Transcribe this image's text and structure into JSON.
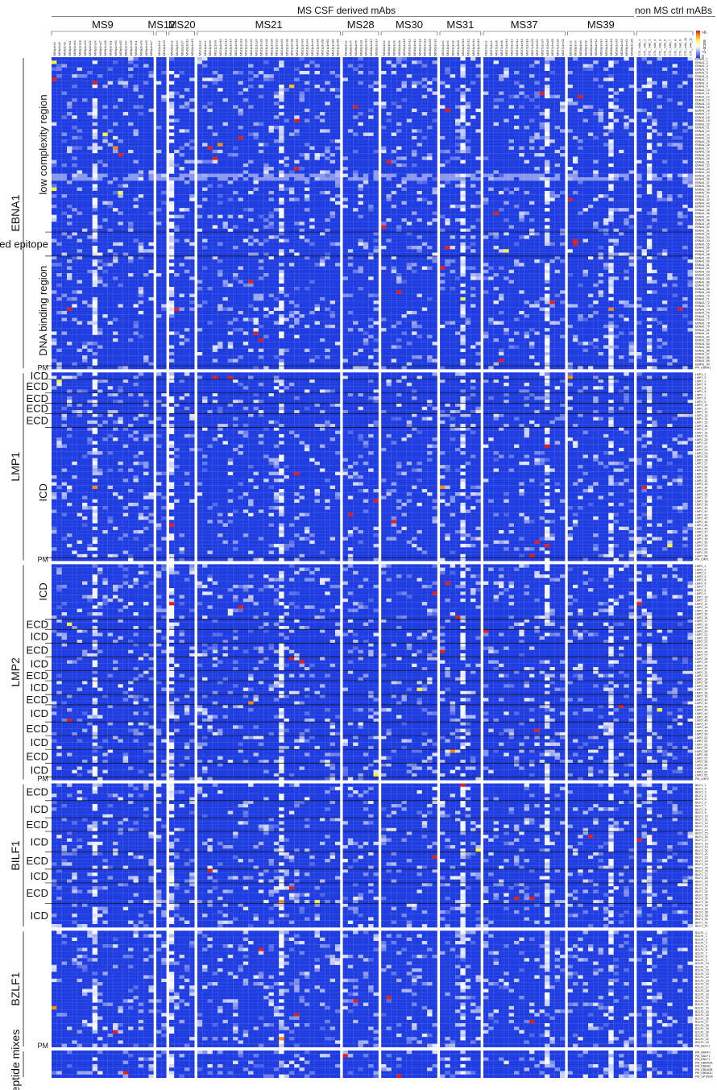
{
  "chart_data": {
    "type": "heatmap",
    "title": "MS CSF derived mAbs",
    "title_right": "non MS ctrl mABs",
    "colorbar": {
      "label": "Z-score",
      "max_label": ">6",
      "min_label": "0",
      "colors": [
        "#1f3de0",
        "#ffffff",
        "#fff23a",
        "#ff8a00",
        "#e0211a"
      ]
    },
    "column_groups": [
      {
        "name": "MS9",
        "columns": [
          "MS9p1re3",
          "MS9p1re5",
          "MS9p1re8",
          "MS9p1re11",
          "MS9p1re16",
          "MS9p1re18",
          "MS9p1re20",
          "MS9p1re22",
          "MS9p1re24",
          "MS9p1re27",
          "MS9p1re29",
          "MS9p1re31",
          "MS9p1re33",
          "MS9p1re35",
          "MS9p1re37",
          "MS9p1re39",
          "MS9p1re41",
          "MS9p1re43",
          "MS9p1re45",
          "MS9p1re47"
        ]
      },
      {
        "name": "MS12",
        "columns": [
          "MS12p1re2",
          "MS12p1re5"
        ]
      },
      {
        "name": "MS20",
        "columns": [
          "MS20p1re2",
          "MS20p1re4",
          "MS20p1re7",
          "MS20p1re11",
          "MS20p1re15"
        ]
      },
      {
        "name": "MS21",
        "columns": [
          "MS21p1re2",
          "MS21p1re4",
          "MS21p1re6",
          "MS21p1re8",
          "MS21p1re10",
          "MS21p1re12",
          "MS21p1re14",
          "MS21p1re16",
          "MS21p1re18",
          "MS21p1re20",
          "MS21p1re22",
          "MS21p1re24",
          "MS21p1re26",
          "MS21p1re28",
          "MS21p1re30",
          "MS21p1re32",
          "MS21p1re34",
          "MS21p1re36",
          "MS21p1re38",
          "MS21p1re40",
          "MS21p1re42",
          "MS21p1re44",
          "MS21p1re46",
          "MS21p1re48",
          "MS21p1re50",
          "MS21p1re52",
          "MS21p1re54",
          "MS21p1re56"
        ]
      },
      {
        "name": "MS28",
        "columns": [
          "MS28p1re2",
          "MS28p1re4",
          "MS28p1re6",
          "MS28p1re8",
          "MS28p1re10",
          "MS28p1re12",
          "MS28p1re14"
        ]
      },
      {
        "name": "MS30",
        "columns": [
          "MS30p1re2",
          "MS30p1re4",
          "MS30p1re6",
          "MS30p1re8",
          "MS30p1re10",
          "MS30p1re12",
          "MS30p1re14",
          "MS30p1re16",
          "MS30p1re18",
          "MS30p1re20",
          "MS30p1re22"
        ]
      },
      {
        "name": "MS31",
        "columns": [
          "MS31p1re2",
          "MS31p1re4",
          "MS31p1re6",
          "MS31p1re8",
          "MS31p1re10",
          "MS31p1re12",
          "MS31p1re14",
          "MS31p1re16"
        ]
      },
      {
        "name": "MS37",
        "columns": [
          "MS37p1re2",
          "MS37p1re4",
          "MS37p1re6",
          "MS37p1re8",
          "MS37p1re10",
          "MS37p1re12",
          "MS37p1re14",
          "MS37p1re16",
          "MS37p1re18",
          "MS37p1re20",
          "MS37p1re22",
          "MS37p1re24",
          "MS37p1re26",
          "MS37p1re28",
          "MS37p1re30",
          "MS37p1re32"
        ]
      },
      {
        "name": "MS39",
        "columns": [
          "MS39p1re2",
          "MS39p1re4",
          "MS39p1re6",
          "MS39p1re8",
          "MS39p1re10",
          "MS39p1re12",
          "MS39p1re14",
          "MS39p1re16",
          "MS39p1re18",
          "MS39p1re20",
          "MS39p1re22",
          "MS39p1re24",
          "MS39p1re26"
        ]
      },
      {
        "name": "",
        "columns": [
          "CTL_mAb_1",
          "CTL_mAb_2",
          "CTL_mAb_3",
          "CTL_mAb_4",
          "CTL_mAb_5",
          "CTL_mAb_6",
          "CTL_mAb_7",
          "CTL_mAb_8",
          "CTL_mAb_9",
          "CTL_mAb_10",
          "CTL_mAb_11"
        ]
      }
    ],
    "row_blocks": [
      {
        "protein": "EBNA1",
        "prefix": "EBNA1",
        "count": 90,
        "pm": "PM_EBNA1",
        "regions": [
          {
            "label": "low complexity region",
            "start": 1,
            "end": 51
          },
          {
            "label": "MS associated epitope",
            "start": 52,
            "end": 58
          },
          {
            "label": "DNA binding region",
            "start": 59,
            "end": 90
          },
          {
            "label": "PM",
            "start": 91,
            "end": 91
          }
        ]
      },
      {
        "protein": "LMP1",
        "prefix": "LMP1",
        "count": 54,
        "pm": "PM_LMP1",
        "regions": [
          {
            "label": "ICD",
            "start": 1,
            "end": 2
          },
          {
            "label": "ECD",
            "start": 3,
            "end": 6
          },
          {
            "label": "ECD",
            "start": 7,
            "end": 9
          },
          {
            "label": "ECD",
            "start": 10,
            "end": 12
          },
          {
            "label": "ECD",
            "start": 13,
            "end": 16
          },
          {
            "label": "ICD",
            "start": 17,
            "end": 54
          },
          {
            "label": "PM",
            "start": 55,
            "end": 55
          }
        ]
      },
      {
        "protein": "LMP2",
        "prefix": "LMP2",
        "count": 62,
        "pm": "PM_LMP2",
        "regions": [
          {
            "label": "ICD",
            "start": 1,
            "end": 16
          },
          {
            "label": "ECD",
            "start": 17,
            "end": 19
          },
          {
            "label": "ICD",
            "start": 20,
            "end": 23
          },
          {
            "label": "ECD",
            "start": 24,
            "end": 27
          },
          {
            "label": "ICD",
            "start": 28,
            "end": 31
          },
          {
            "label": "ECD",
            "start": 32,
            "end": 34
          },
          {
            "label": "ICD",
            "start": 35,
            "end": 38
          },
          {
            "label": "ECD",
            "start": 39,
            "end": 41
          },
          {
            "label": "ICD",
            "start": 42,
            "end": 46
          },
          {
            "label": "ECD",
            "start": 47,
            "end": 50
          },
          {
            "label": "ICD",
            "start": 51,
            "end": 54
          },
          {
            "label": "ECD",
            "start": 55,
            "end": 58
          },
          {
            "label": "ICD",
            "start": 59,
            "end": 62
          },
          {
            "label": "PM",
            "start": 63,
            "end": 63
          }
        ]
      },
      {
        "protein": "BILF1",
        "prefix": "BILF1",
        "count": 42,
        "pm": "",
        "regions": [
          {
            "label": "ECD",
            "start": 1,
            "end": 5
          },
          {
            "label": "ICD",
            "start": 6,
            "end": 10
          },
          {
            "label": "ECD",
            "start": 11,
            "end": 14
          },
          {
            "label": "ICD",
            "start": 15,
            "end": 20
          },
          {
            "label": "ECD",
            "start": 21,
            "end": 25
          },
          {
            "label": "ICD",
            "start": 26,
            "end": 29
          },
          {
            "label": "ECD",
            "start": 30,
            "end": 35
          },
          {
            "label": "ICD",
            "start": 36,
            "end": 42
          }
        ]
      },
      {
        "protein": "BZLF1",
        "prefix": "BZLF1",
        "count": 33,
        "pm": "PM_BZLF1",
        "regions": [
          {
            "label": "PM",
            "start": 34,
            "end": 34
          }
        ]
      },
      {
        "protein": "peptide mixes",
        "prefix": "",
        "count": 0,
        "pm": "",
        "rows": [
          "PM_BARF1",
          "PM_BALF1",
          "PM_BNLF1",
          "PM_EBNA3A",
          "PM_EBNA2",
          "PM_EBNA3B",
          "PM_EBNA3C",
          "PM_GP350/8"
        ],
        "regions": []
      }
    ],
    "highlights": [
      {
        "row": "EBNA1_2",
        "col": "MS9p1re3",
        "z": 4.0
      },
      {
        "row": "EBNA1_7",
        "col": "MS9p1re3",
        "z": 6.0
      },
      {
        "row": "EBNA1_8",
        "col": "MS9p1re24",
        "z": 6.0
      },
      {
        "row": "EBNA1_9",
        "col": "MS21p1re38",
        "z": 4.5
      },
      {
        "row": "EBNA1_11",
        "col": "MS37p1re24",
        "z": 6.5
      },
      {
        "row": "EBNA1_12",
        "col": "MS39p1re6",
        "z": 6.0
      },
      {
        "row": "EBNA1_15",
        "col": "MS28p1re6",
        "z": 6.5
      },
      {
        "row": "EBNA1_16",
        "col": "MS31p1re4",
        "z": 6.5
      },
      {
        "row": "EBNA1_19",
        "col": "MS21p1re40",
        "z": 6.0
      },
      {
        "row": "EBNA1_23",
        "col": "MS9p1re29",
        "z": 4.0
      },
      {
        "row": "EBNA1_24",
        "col": "MS21p1re18",
        "z": 6.0
      },
      {
        "row": "EBNA1_26",
        "col": "MS21p1re10",
        "z": 5.0
      },
      {
        "row": "EBNA1_27",
        "col": "MS9p1re33",
        "z": 5.0
      },
      {
        "row": "EBNA1_27",
        "col": "MS21p1re6",
        "z": 6.0
      },
      {
        "row": "EBNA1_29",
        "col": "MS9p1re35",
        "z": 6.0
      },
      {
        "row": "EBNA1_30",
        "col": "MS21p1re8",
        "z": 6.0
      },
      {
        "row": "EBNA1_31",
        "col": "MS30p1re4",
        "z": 6.0
      },
      {
        "row": "EBNA1_33",
        "col": "MS21p1re40",
        "z": 6.0
      },
      {
        "row": "EBNA1_39",
        "col": "MS9p1re3",
        "z": 4.0
      },
      {
        "row": "EBNA1_40",
        "col": "MS9p1re35",
        "z": 4.0
      },
      {
        "row": "EBNA1_42",
        "col": "MS39p1re2",
        "z": 6.0
      },
      {
        "row": "EBNA1_46",
        "col": "MS37p1re6",
        "z": 6.0
      },
      {
        "row": "EBNA1_50",
        "col": "MS30p1re2",
        "z": 6.0
      },
      {
        "row": "EBNA1_54",
        "col": "MS39p1re4",
        "z": 6.5
      },
      {
        "row": "EBNA1_55",
        "col": "MS39p1re4",
        "z": 6.5
      },
      {
        "row": "EBNA1_56",
        "col": "MS31p1re4",
        "z": 6.0
      },
      {
        "row": "EBNA1_57",
        "col": "MS37p1re10",
        "z": 4.0
      },
      {
        "row": "EBNA1_62",
        "col": "MS31p1re2",
        "z": 6.0
      },
      {
        "row": "EBNA1_66",
        "col": "MS21p1re22",
        "z": 6.0
      },
      {
        "row": "EBNA1_69",
        "col": "MS30p1re8",
        "z": 6.0
      },
      {
        "row": "EBNA1_71",
        "col": "MS31p1re10",
        "z": 4.0
      },
      {
        "row": "EBNA1_72",
        "col": "MS37p1re28",
        "z": 6.0
      },
      {
        "row": "EBNA1_74",
        "col": "MS9p1re11",
        "z": 6.0
      },
      {
        "row": "EBNA1_74",
        "col": "MS20p1re4",
        "z": 6.0
      },
      {
        "row": "EBNA1_74",
        "col": "MS39p1re18",
        "z": 5.0
      },
      {
        "row": "EBNA1_74",
        "col": "CTL_mAb_9",
        "z": 6.0
      },
      {
        "row": "EBNA1_81",
        "col": "MS21p1re24",
        "z": 6.0
      },
      {
        "row": "EBNA1_83",
        "col": "MS21p1re26",
        "z": 6.0
      },
      {
        "row": "EBNA1_89",
        "col": "MS37p1re8",
        "z": 6.0
      },
      {
        "row": "LMP1_2",
        "col": "MS21p1re8",
        "z": 6.0
      },
      {
        "row": "LMP1_2",
        "col": "MS21p1re14",
        "z": 6.0
      },
      {
        "row": "LMP1_2",
        "col": "MS39p1re2",
        "z": 5.0
      },
      {
        "row": "LMP1_3",
        "col": "MS9p1re5",
        "z": 4.0
      },
      {
        "row": "LMP1_22",
        "col": "MS37p1re26",
        "z": 6.0
      },
      {
        "row": "LMP1_30",
        "col": "MS21p1re40",
        "z": 6.0
      },
      {
        "row": "LMP1_34",
        "col": "MS9p1re24",
        "z": 5.0
      },
      {
        "row": "LMP1_34",
        "col": "MS31p1re2",
        "z": 5.0
      },
      {
        "row": "LMP1_34",
        "col": "CTL_mAb_2",
        "z": 6.0
      },
      {
        "row": "LMP1_38",
        "col": "MS28p1re14",
        "z": 6.0
      },
      {
        "row": "LMP1_42",
        "col": "MS28p1re4",
        "z": 6.0
      },
      {
        "row": "LMP1_44",
        "col": "MS30p1re6",
        "z": 6.0
      },
      {
        "row": "LMP1_45",
        "col": "MS20p1re2",
        "z": 6.0
      },
      {
        "row": "LMP1_50",
        "col": "MS37p1re22",
        "z": 6.0
      },
      {
        "row": "LMP1_51",
        "col": "MS37p1re26",
        "z": 6.0
      },
      {
        "row": "LMP1_51",
        "col": "CTL_mAb_7",
        "z": 4.0
      },
      {
        "row": "LMP1_54",
        "col": "MS37p1re20",
        "z": 6.0
      },
      {
        "row": "LMP2_6",
        "col": "MS31p1re4",
        "z": 6.0
      },
      {
        "row": "LMP2_9",
        "col": "MS30p1re22",
        "z": 6.0
      },
      {
        "row": "LMP2_12",
        "col": "MS20p1re2",
        "z": 6.0
      },
      {
        "row": "LMP2_12",
        "col": "CTL_mAb_1",
        "z": 6.0
      },
      {
        "row": "LMP2_13",
        "col": "MS21p1re18",
        "z": 6.0
      },
      {
        "row": "LMP2_16",
        "col": "MS31p1re8",
        "z": 6.0
      },
      {
        "row": "LMP2_18",
        "col": "MS9p1re11",
        "z": 4.0
      },
      {
        "row": "LMP2_20",
        "col": "MS37p1re2",
        "z": 6.0
      },
      {
        "row": "LMP2_26",
        "col": "MS31p1re2",
        "z": 6.0
      },
      {
        "row": "LMP2_28",
        "col": "MS21p1re38",
        "z": 6.0
      },
      {
        "row": "LMP2_29",
        "col": "MS21p1re42",
        "z": 6.0
      },
      {
        "row": "LMP2_37",
        "col": "MS30p1re16",
        "z": 4.0
      },
      {
        "row": "LMP2_41",
        "col": "MS21p1re22",
        "z": 5.0
      },
      {
        "row": "LMP2_42",
        "col": "MS39p1re22",
        "z": 6.0
      },
      {
        "row": "LMP2_43",
        "col": "CTL_mAb_5",
        "z": 4.0
      },
      {
        "row": "LMP2_46",
        "col": "MS9p1re11",
        "z": 6.0
      },
      {
        "row": "LMP2_49",
        "col": "MS37p1re22",
        "z": 6.0
      },
      {
        "row": "LMP2_55",
        "col": "MS31p1re6",
        "z": 5.0
      },
      {
        "row": "LMP2_62",
        "col": "MS28p1re14",
        "z": 4.0
      },
      {
        "row": "BILF1_1",
        "col": "MS31p1re10",
        "z": 6.0
      },
      {
        "row": "BILF1_16",
        "col": "MS39p1re10",
        "z": 6.0
      },
      {
        "row": "BILF1_17",
        "col": "CTL_mAb_1",
        "z": 6.0
      },
      {
        "row": "BILF1_20",
        "col": "MS31p1re16",
        "z": 4.0
      },
      {
        "row": "BILF1_22",
        "col": "MS30p1re22",
        "z": 6.0
      },
      {
        "row": "BILF1_26",
        "col": "MS21p1re6",
        "z": 6.0
      },
      {
        "row": "BILF1_31",
        "col": "MS21p1re38",
        "z": 6.0
      },
      {
        "row": "BILF1_34",
        "col": "MS37p1re14",
        "z": 6.0
      },
      {
        "row": "BILF1_34",
        "col": "MS37p1re20",
        "z": 6.0
      },
      {
        "row": "BILF1_35",
        "col": "MS21p1re48",
        "z": 4.0
      },
      {
        "row": "BILF1_35",
        "col": "MS21p1re34",
        "z": 5.0
      },
      {
        "row": "BZLF1_6",
        "col": "MS21p1re26",
        "z": 6.0
      },
      {
        "row": "BZLF1_20",
        "col": "MS30p1re4",
        "z": 6.0
      },
      {
        "row": "BZLF1_21",
        "col": "MS28p1re6",
        "z": 6.0
      },
      {
        "row": "BZLF1_23",
        "col": "MS9p1re3",
        "z": 5.0
      },
      {
        "row": "BZLF1_25",
        "col": "MS21p1re40",
        "z": 6.0
      },
      {
        "row": "BZLF1_27",
        "col": "MS37p1re20",
        "z": 6.0
      },
      {
        "row": "BZLF1_30",
        "col": "MS9p1re33",
        "z": 6.0
      },
      {
        "row": "BZLF1_32",
        "col": "MS21p1re34",
        "z": 5.0
      },
      {
        "row": "PM_BALF1",
        "col": "MS28p1re2",
        "z": 6.0
      },
      {
        "row": "PM_EBNA3C",
        "col": "MS9p1re37",
        "z": 6.0
      },
      {
        "row": "PM_GP350/8",
        "col": "MS30p1re8",
        "z": 6.0
      }
    ]
  }
}
